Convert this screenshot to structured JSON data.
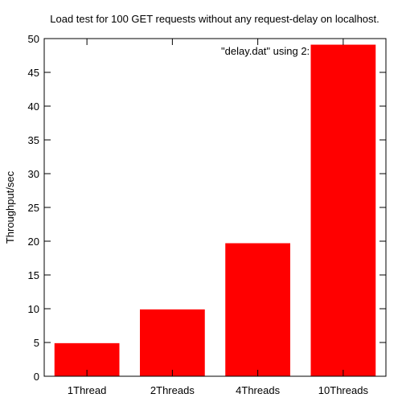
{
  "chart_data": {
    "type": "bar",
    "title": "Load test for 100 GET requests  without any request-delay on localhost.",
    "ylabel": "Throughput/sec",
    "xlabel": "",
    "categories": [
      "1Thread",
      "2Threads",
      "4Threads",
      "10Threads"
    ],
    "values": [
      4.9,
      9.9,
      19.7,
      49.1
    ],
    "ylim": [
      0,
      50
    ],
    "yticks": [
      0,
      5,
      10,
      15,
      20,
      25,
      30,
      35,
      40,
      45,
      50
    ],
    "legend_label": "\"delay.dat\" using 2:",
    "legend_position": "top-right",
    "grid": false,
    "bar_color": "#ff0000"
  }
}
